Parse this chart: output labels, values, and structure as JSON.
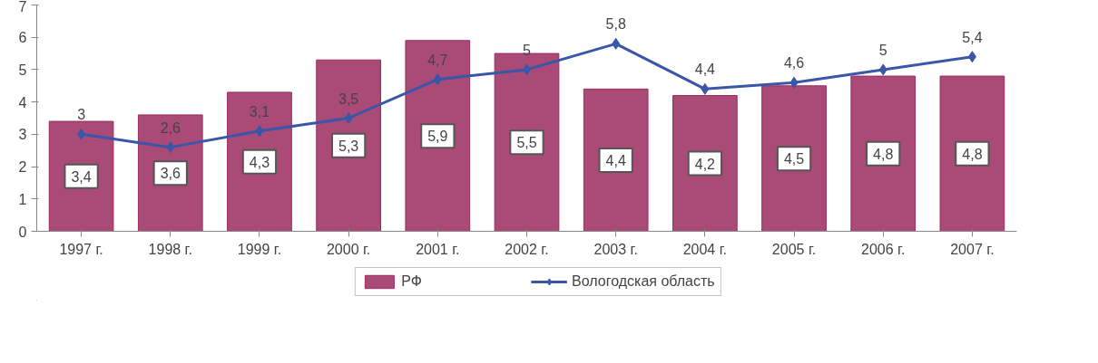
{
  "chart_data": {
    "type": "bar",
    "categories": [
      "1997 г.",
      "1998 г.",
      "1999 г.",
      "2000 г.",
      "2001 г.",
      "2002 г.",
      "2003 г.",
      "2004 г.",
      "2005 г.",
      "2006 г.",
      "2007 г."
    ],
    "series": [
      {
        "name": "РФ",
        "color": "#9b2a5e",
        "values": [
          3.4,
          3.6,
          4.3,
          5.3,
          5.9,
          5.5,
          4.4,
          4.2,
          4.5,
          4.8,
          4.8
        ],
        "value_labels": [
          "3,4",
          "3,6",
          "4,3",
          "5,3",
          "5,9",
          "5,5",
          "4,4",
          "4,2",
          "4,5",
          "4,8",
          "4,8"
        ]
      },
      {
        "name": "Вологодская область",
        "type": "line",
        "color": "#3a56a8",
        "marker": "diamond",
        "values": [
          3,
          2.6,
          3.1,
          3.5,
          4.7,
          5,
          5.8,
          4.4,
          4.6,
          5,
          5.4
        ],
        "value_labels": [
          "3",
          "2,6",
          "3,1",
          "3,5",
          "4,7",
          "5",
          "5,8",
          "4,4",
          "4,6",
          "5",
          "5,4"
        ]
      }
    ],
    "ylim": [
      0,
      7
    ],
    "yticks": [
      0,
      1,
      2,
      3,
      4,
      5,
      6,
      7
    ],
    "grid": false,
    "legend": "bottom"
  }
}
